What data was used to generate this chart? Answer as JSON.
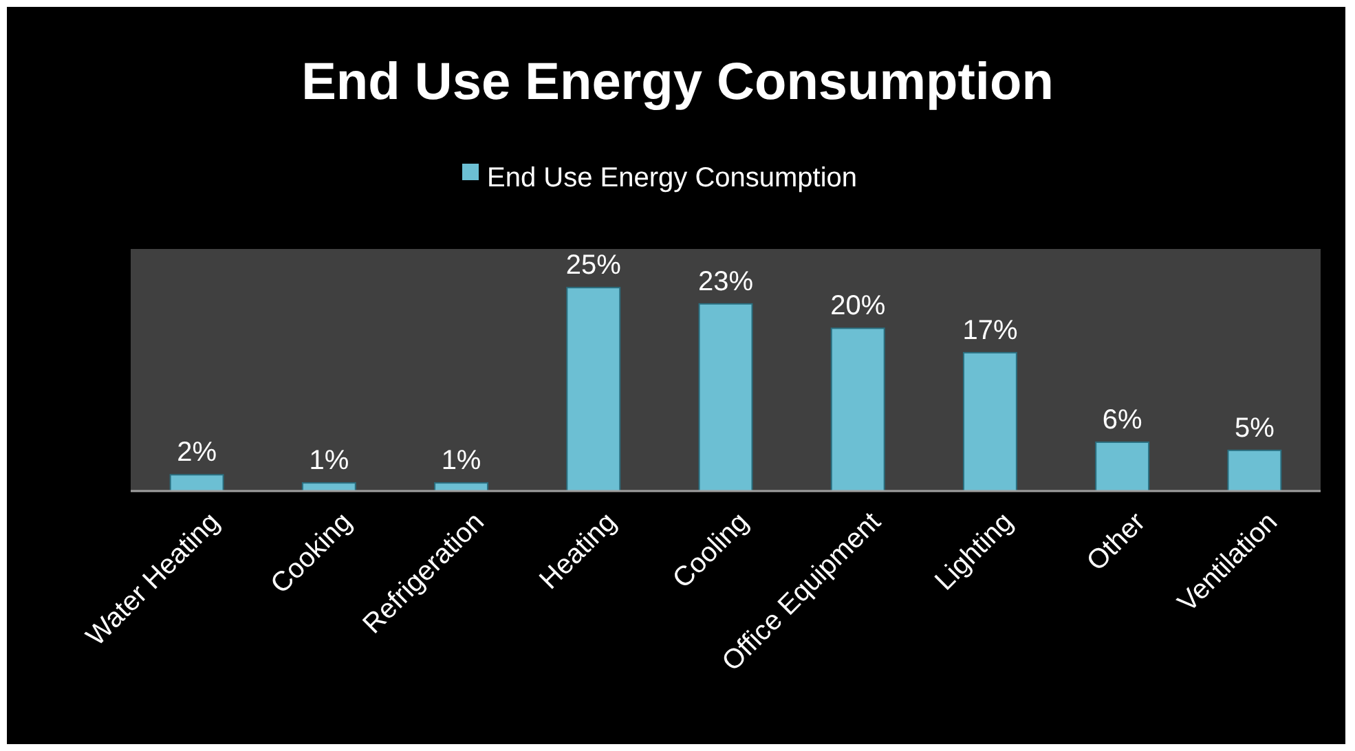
{
  "chart_data": {
    "type": "bar",
    "title": "End Use Energy Consumption",
    "categories": [
      "Water Heating",
      "Cooking",
      "Refrigeration",
      "Heating",
      "Cooling",
      "Office Equipment",
      "Lighting",
      "Other",
      "Ventilation"
    ],
    "series": [
      {
        "name": "End Use Energy Consumption",
        "color": "#6cbfd3",
        "values": [
          2,
          1,
          1,
          25,
          23,
          20,
          17,
          6,
          5
        ],
        "value_labels": [
          "2%",
          "1%",
          "1%",
          "25%",
          "23%",
          "20%",
          "17%",
          "6%",
          "5%"
        ]
      }
    ],
    "legend": "top"
  }
}
